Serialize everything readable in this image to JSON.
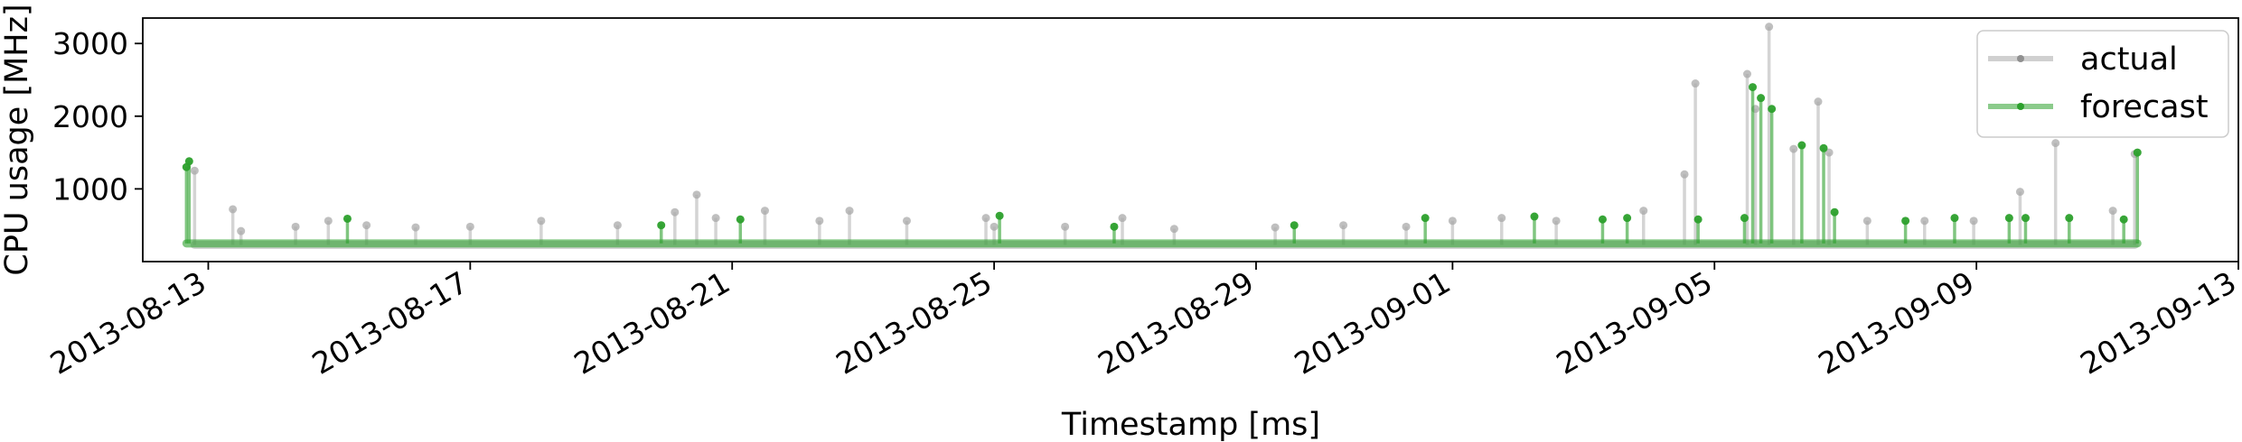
{
  "chart_data": {
    "type": "line",
    "xlabel": "Timestamp [ms]",
    "ylabel": "CPU usage [MHz]",
    "xlim": [
      "2013-08-12",
      "2013-09-13"
    ],
    "ylim": [
      0,
      3350
    ],
    "x_ticks": [
      "2013-08-13",
      "2013-08-17",
      "2013-08-21",
      "2013-08-25",
      "2013-08-29",
      "2013-09-01",
      "2013-09-05",
      "2013-09-09",
      "2013-09-13"
    ],
    "y_ticks": [
      1000,
      2000,
      3000
    ],
    "grid": false,
    "legend": "top-right",
    "series": [
      {
        "name": "actual",
        "color": "#a9a9a9",
        "baseline": 230,
        "x": [
          "2013-08-12 19:00",
          "2013-08-13 09:00",
          "2013-08-13 12:00",
          "2013-08-14 08:00",
          "2013-08-14 20:00",
          "2013-08-15 10:00",
          "2013-08-16 04:00",
          "2013-08-17 00:00",
          "2013-08-18 02:00",
          "2013-08-19 06:00",
          "2013-08-20 03:00",
          "2013-08-20 11:00",
          "2013-08-20 18:00",
          "2013-08-21 12:00",
          "2013-08-22 08:00",
          "2013-08-22 19:00",
          "2013-08-23 16:00",
          "2013-08-24 21:00",
          "2013-08-25 00:00",
          "2013-08-26 02:00",
          "2013-08-26 23:00",
          "2013-08-27 18:00",
          "2013-08-29 07:00",
          "2013-08-30 08:00",
          "2013-08-31 07:00",
          "2013-09-01 00:00",
          "2013-09-01 18:00",
          "2013-09-02 14:00",
          "2013-09-03 22:00",
          "2013-09-04 13:00",
          "2013-09-04 17:00",
          "2013-09-05 12:00",
          "2013-09-05 15:00",
          "2013-09-05 20:00",
          "2013-09-06 05:00",
          "2013-09-06 14:00",
          "2013-09-06 18:00",
          "2013-09-07 08:00",
          "2013-09-08 05:00",
          "2013-09-08 23:00",
          "2013-09-09 16:00",
          "2013-09-10 05:00",
          "2013-09-11 02:00",
          "2013-09-11 10:00"
        ],
        "values": [
          1250,
          720,
          420,
          480,
          560,
          500,
          470,
          480,
          560,
          500,
          680,
          920,
          600,
          700,
          560,
          700,
          560,
          600,
          480,
          480,
          600,
          450,
          470,
          500,
          480,
          560,
          600,
          560,
          700,
          1200,
          2450,
          2580,
          2100,
          3230,
          1550,
          2200,
          1500,
          560,
          560,
          560,
          960,
          1630,
          700,
          1480
        ]
      },
      {
        "name": "forecast",
        "color": "#2ca02c",
        "baseline": 250,
        "x": [
          "2013-08-12 16:00",
          "2013-08-12 17:00",
          "2013-08-15 03:00",
          "2013-08-19 22:00",
          "2013-08-21 03:00",
          "2013-08-25 02:00",
          "2013-08-26 20:00",
          "2013-08-29 14:00",
          "2013-08-31 14:00",
          "2013-09-02 06:00",
          "2013-09-03 07:00",
          "2013-09-03 16:00",
          "2013-09-04 18:00",
          "2013-09-05 11:00",
          "2013-09-05 14:00",
          "2013-09-05 17:00",
          "2013-09-05 21:00",
          "2013-09-06 08:00",
          "2013-09-06 16:00",
          "2013-09-06 20:00",
          "2013-09-07 22:00",
          "2013-09-08 16:00",
          "2013-09-09 12:00",
          "2013-09-09 18:00",
          "2013-09-10 10:00",
          "2013-09-11 06:00",
          "2013-09-11 11:00"
        ],
        "values": [
          1300,
          1380,
          590,
          500,
          580,
          630,
          480,
          500,
          600,
          620,
          580,
          600,
          580,
          600,
          2400,
          2250,
          2100,
          1600,
          1560,
          680,
          560,
          600,
          600,
          600,
          600,
          580,
          1500
        ]
      }
    ]
  }
}
